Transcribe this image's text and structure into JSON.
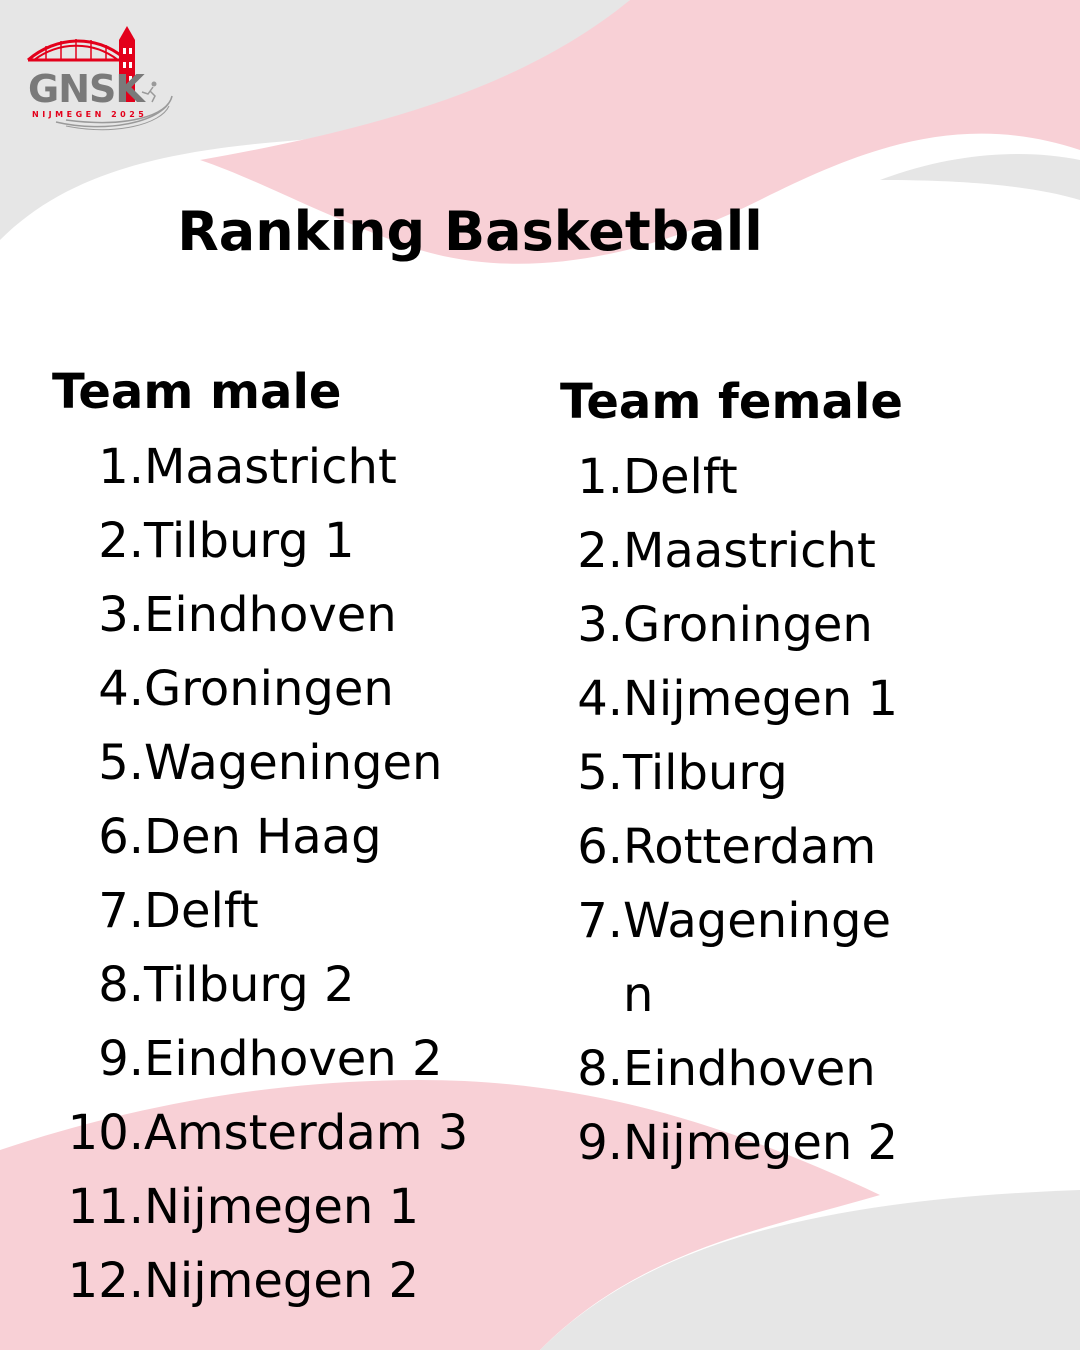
{
  "colors": {
    "accent_red": "#e3001b",
    "pink_shape": "#f8d0d6",
    "grey_shape": "#e6e6e6",
    "text": "#000000"
  },
  "logo": {
    "wordmark": "GNSK",
    "tagline": "NIJMEGEN 2025",
    "icon": "bridge-tower-icon"
  },
  "page": {
    "title": "Ranking Basketball"
  },
  "male": {
    "heading": "Team male",
    "items": [
      {
        "num": "1.",
        "name": "Maastricht"
      },
      {
        "num": "2.",
        "name": "Tilburg 1"
      },
      {
        "num": "3.",
        "name": "Eindhoven"
      },
      {
        "num": "4.",
        "name": "Groningen"
      },
      {
        "num": "5.",
        "name": "Wageningen"
      },
      {
        "num": "6.",
        "name": "Den Haag"
      },
      {
        "num": "7.",
        "name": "Delft"
      },
      {
        "num": "8.",
        "name": "Tilburg 2"
      },
      {
        "num": "9.",
        "name": "Eindhoven 2"
      },
      {
        "num": "10.",
        "name": "Amsterdam 3"
      },
      {
        "num": "11.",
        "name": "Nijmegen 1"
      },
      {
        "num": "12.",
        "name": "Nijmegen 2"
      }
    ]
  },
  "female": {
    "heading": "Team female",
    "items": [
      {
        "num": "1.",
        "name": "Delft"
      },
      {
        "num": "2.",
        "name": "Maastricht"
      },
      {
        "num": "3.",
        "name": "Groningen"
      },
      {
        "num": "4.",
        "name": "Nijmegen 1"
      },
      {
        "num": "5.",
        "name": "Tilburg"
      },
      {
        "num": "6.",
        "name": "Rotterdam"
      },
      {
        "num": "7.",
        "name": "Wageningen"
      },
      {
        "num": "8.",
        "name": "Eindhoven"
      },
      {
        "num": "9.",
        "name": "Nijmegen 2"
      }
    ]
  }
}
